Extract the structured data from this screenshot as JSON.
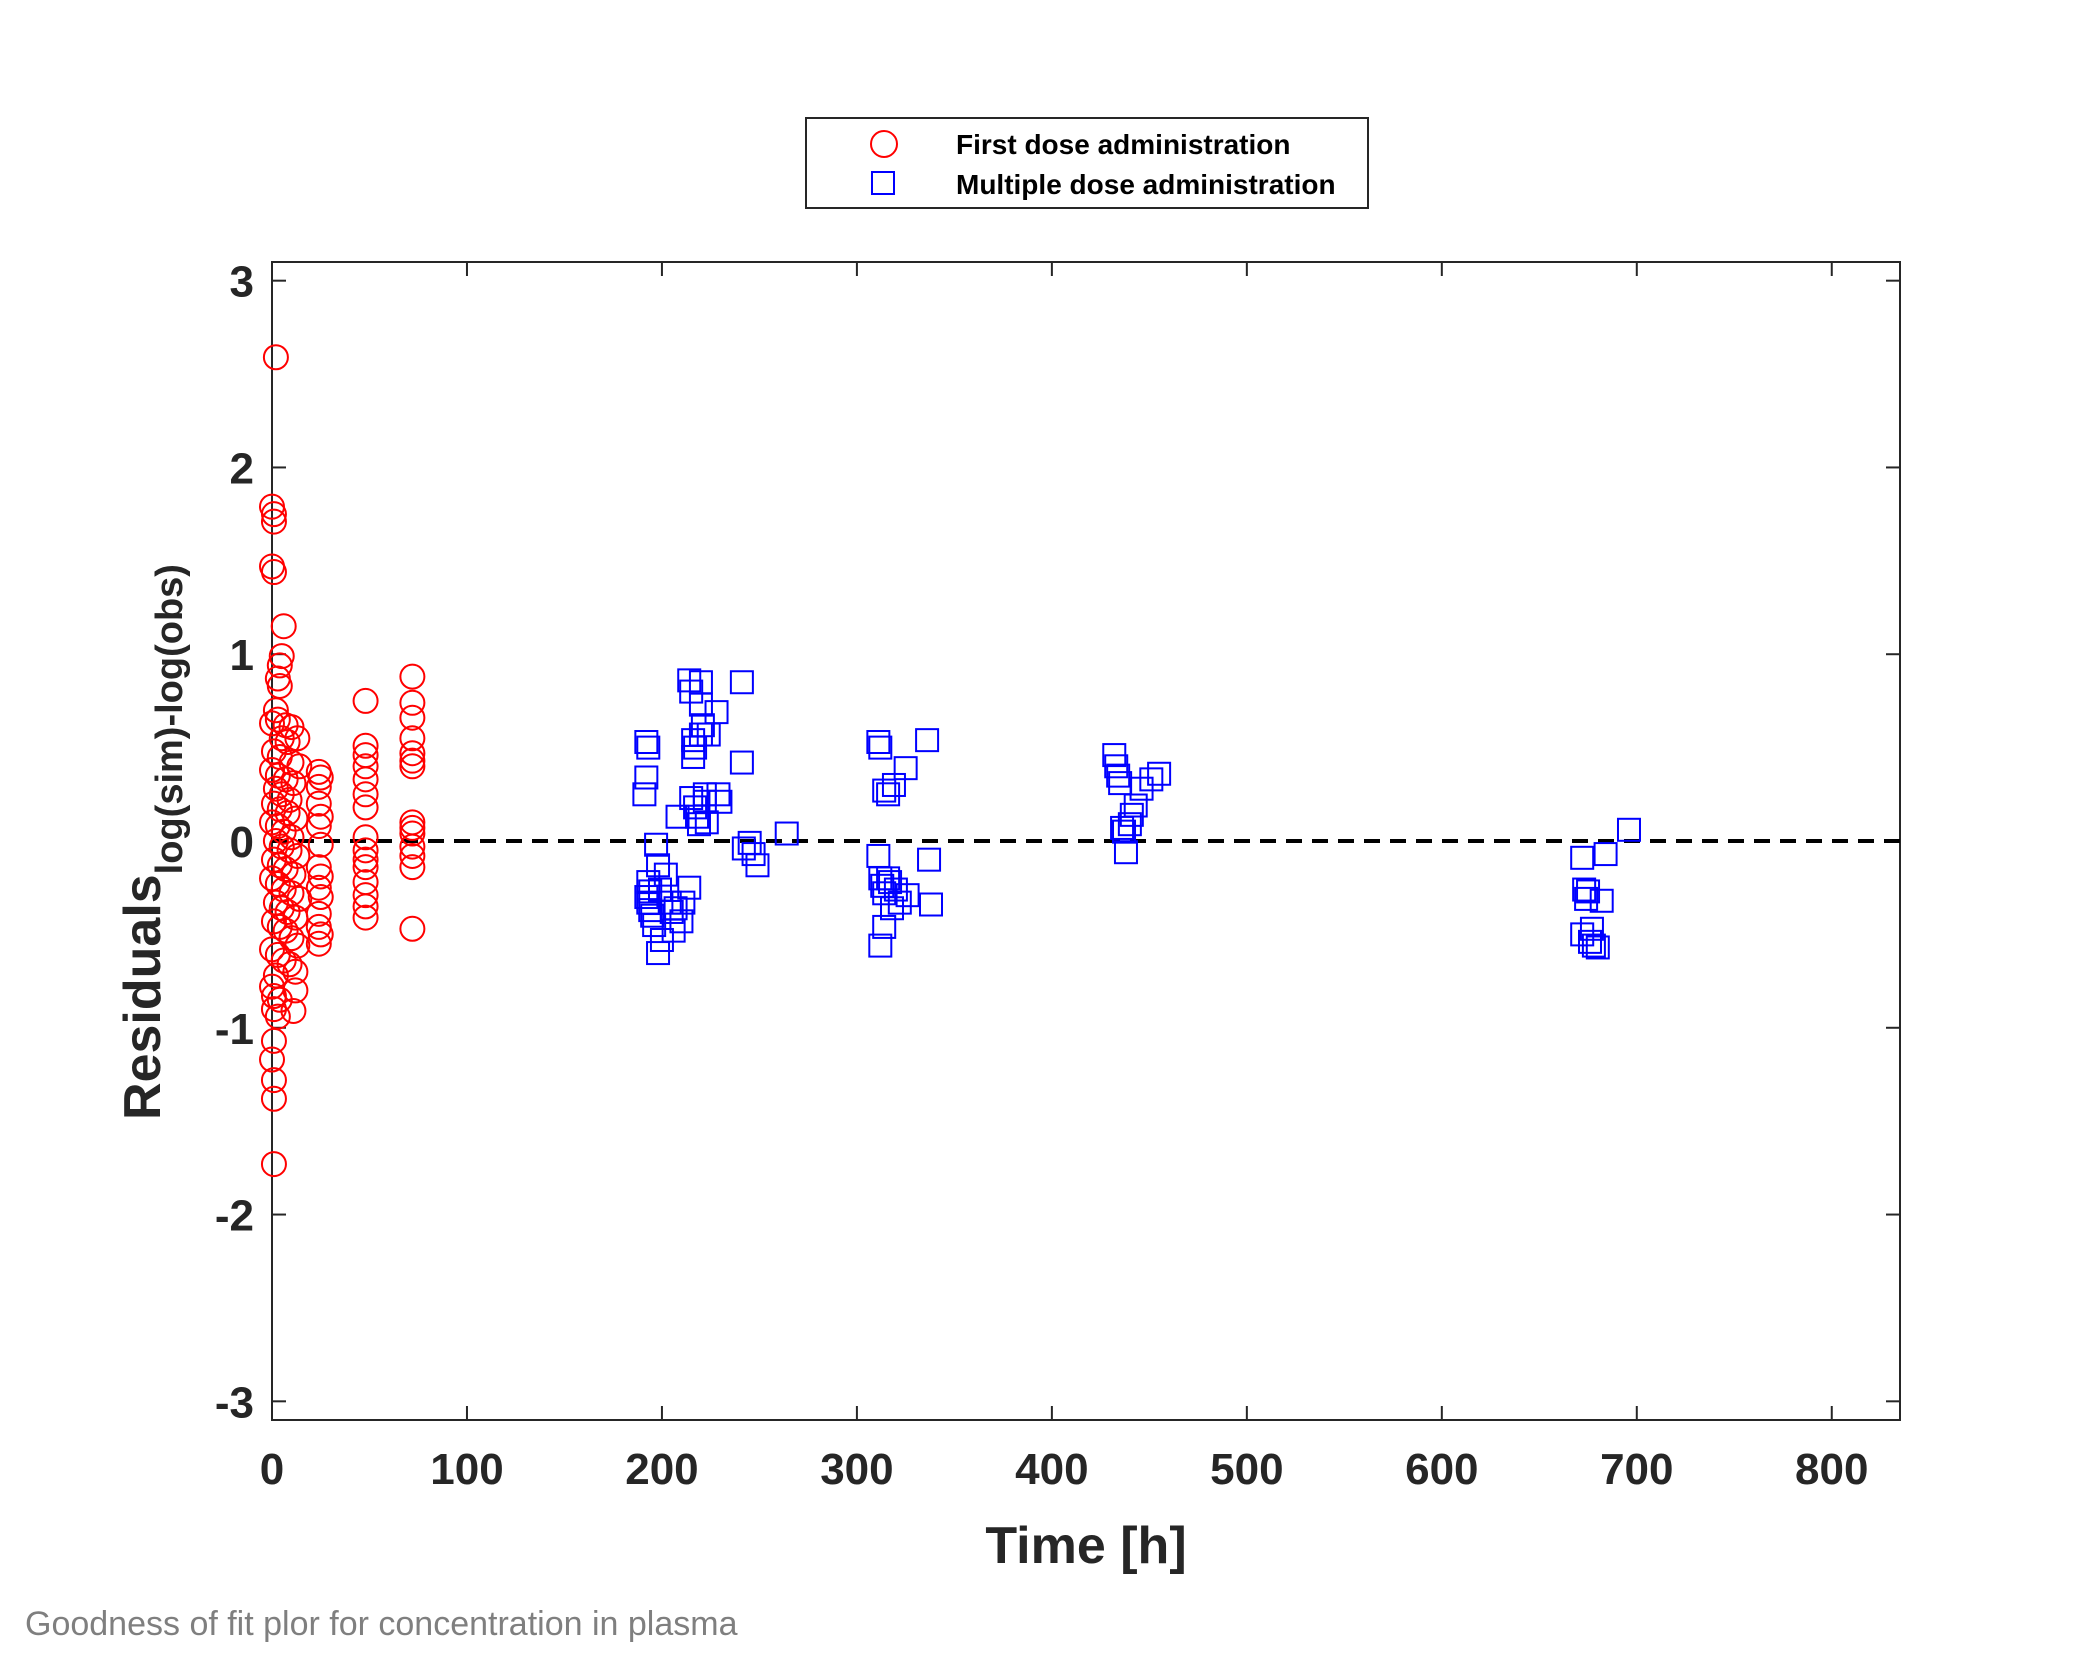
{
  "caption": "Goodness of fit plor for concentration in plasma",
  "chart_data": {
    "type": "scatter",
    "xlabel": "Time [h]",
    "ylabel_main": "Residuals",
    "ylabel_sub": "log(sim)-log(obs)",
    "xlim": [
      0,
      835
    ],
    "ylim": [
      -3.1,
      3.1
    ],
    "xticks": [
      0,
      100,
      200,
      300,
      400,
      500,
      600,
      700,
      800
    ],
    "yticks": [
      -3,
      -2,
      -1,
      0,
      1,
      2,
      3
    ],
    "grid": false,
    "legend_position": "top-center",
    "reference_line": {
      "y": 0,
      "style": "dashed",
      "color": "#000000"
    },
    "series": [
      {
        "name": "First dose administration",
        "marker": "circle",
        "color": "#ff0000",
        "points": [
          [
            2,
            2.59
          ],
          [
            0,
            1.79
          ],
          [
            1,
            1.75
          ],
          [
            1,
            1.71
          ],
          [
            0,
            1.47
          ],
          [
            1,
            1.44
          ],
          [
            6,
            1.15
          ],
          [
            5,
            0.99
          ],
          [
            4,
            0.94
          ],
          [
            3,
            0.87
          ],
          [
            4,
            0.83
          ],
          [
            2,
            0.7
          ],
          [
            0,
            0.63
          ],
          [
            3,
            0.65
          ],
          [
            7,
            0.62
          ],
          [
            10,
            0.61
          ],
          [
            13,
            0.55
          ],
          [
            5,
            0.55
          ],
          [
            8,
            0.53
          ],
          [
            1,
            0.48
          ],
          [
            4,
            0.45
          ],
          [
            10,
            0.42
          ],
          [
            14,
            0.4
          ],
          [
            0,
            0.38
          ],
          [
            3,
            0.35
          ],
          [
            7,
            0.33
          ],
          [
            11,
            0.31
          ],
          [
            2,
            0.28
          ],
          [
            5,
            0.25
          ],
          [
            9,
            0.22
          ],
          [
            1,
            0.2
          ],
          [
            4,
            0.17
          ],
          [
            8,
            0.15
          ],
          [
            12,
            0.12
          ],
          [
            0,
            0.1
          ],
          [
            3,
            0.08
          ],
          [
            6,
            0.05
          ],
          [
            10,
            0.02
          ],
          [
            2,
            0.0
          ],
          [
            5,
            -0.03
          ],
          [
            9,
            -0.05
          ],
          [
            13,
            -0.08
          ],
          [
            1,
            -0.1
          ],
          [
            4,
            -0.13
          ],
          [
            7,
            -0.15
          ],
          [
            11,
            -0.18
          ],
          [
            0,
            -0.2
          ],
          [
            3,
            -0.23
          ],
          [
            6,
            -0.26
          ],
          [
            10,
            -0.28
          ],
          [
            14,
            -0.31
          ],
          [
            2,
            -0.33
          ],
          [
            5,
            -0.36
          ],
          [
            8,
            -0.38
          ],
          [
            12,
            -0.41
          ],
          [
            1,
            -0.43
          ],
          [
            4,
            -0.46
          ],
          [
            7,
            -0.48
          ],
          [
            10,
            -0.52
          ],
          [
            13,
            -0.56
          ],
          [
            0,
            -0.58
          ],
          [
            3,
            -0.61
          ],
          [
            6,
            -0.64
          ],
          [
            9,
            -0.66
          ],
          [
            12,
            -0.7
          ],
          [
            2,
            -0.72
          ],
          [
            0,
            -0.78
          ],
          [
            1,
            -0.83
          ],
          [
            12,
            -0.8
          ],
          [
            4,
            -0.85
          ],
          [
            1,
            -0.9
          ],
          [
            11,
            -0.91
          ],
          [
            3,
            -0.94
          ],
          [
            1,
            -1.07
          ],
          [
            0,
            -1.17
          ],
          [
            1,
            -1.28
          ],
          [
            1,
            -1.38
          ],
          [
            1,
            -1.73
          ],
          [
            24,
            0.37
          ],
          [
            25,
            0.34
          ],
          [
            24,
            0.29
          ],
          [
            24,
            0.2
          ],
          [
            25,
            0.13
          ],
          [
            24,
            0.08
          ],
          [
            25,
            -0.02
          ],
          [
            24,
            -0.14
          ],
          [
            25,
            -0.19
          ],
          [
            24,
            -0.25
          ],
          [
            25,
            -0.3
          ],
          [
            24,
            -0.39
          ],
          [
            24,
            -0.46
          ],
          [
            25,
            -0.5
          ],
          [
            24,
            -0.55
          ],
          [
            48,
            0.75
          ],
          [
            48,
            0.51
          ],
          [
            48,
            0.46
          ],
          [
            48,
            0.4
          ],
          [
            48,
            0.33
          ],
          [
            48,
            0.25
          ],
          [
            48,
            0.18
          ],
          [
            48,
            0.02
          ],
          [
            48,
            -0.05
          ],
          [
            48,
            -0.1
          ],
          [
            48,
            -0.14
          ],
          [
            48,
            -0.22
          ],
          [
            48,
            -0.29
          ],
          [
            48,
            -0.35
          ],
          [
            48,
            -0.41
          ],
          [
            72,
            0.88
          ],
          [
            72,
            0.74
          ],
          [
            72,
            0.66
          ],
          [
            72,
            0.55
          ],
          [
            72,
            0.47
          ],
          [
            72,
            0.43
          ],
          [
            72,
            0.4
          ],
          [
            72,
            0.1
          ],
          [
            72,
            0.07
          ],
          [
            72,
            0.04
          ],
          [
            72,
            -0.03
          ],
          [
            72,
            -0.08
          ],
          [
            72,
            -0.14
          ],
          [
            72,
            -0.47
          ]
        ]
      },
      {
        "name": "Multiple dose administration",
        "marker": "square",
        "color": "#0000ff",
        "points": [
          [
            192,
            0.53
          ],
          [
            193,
            0.5
          ],
          [
            192,
            0.34
          ],
          [
            191,
            0.25
          ],
          [
            193,
            -0.22
          ],
          [
            194,
            -0.27
          ],
          [
            192,
            -0.3
          ],
          [
            193,
            -0.33
          ],
          [
            194,
            -0.37
          ],
          [
            195,
            -0.4
          ],
          [
            196,
            -0.45
          ],
          [
            197,
            -0.02
          ],
          [
            198,
            -0.13
          ],
          [
            199,
            -0.26
          ],
          [
            200,
            -0.53
          ],
          [
            198,
            -0.6
          ],
          [
            202,
            -0.18
          ],
          [
            204,
            -0.33
          ],
          [
            205,
            -0.38
          ],
          [
            206,
            -0.48
          ],
          [
            207,
            -0.36
          ],
          [
            208,
            0.13
          ],
          [
            210,
            -0.43
          ],
          [
            211,
            -0.33
          ],
          [
            214,
            -0.25
          ],
          [
            214,
            0.86
          ],
          [
            215,
            0.8
          ],
          [
            216,
            0.54
          ],
          [
            217,
            0.5
          ],
          [
            216,
            0.45
          ],
          [
            215,
            0.23
          ],
          [
            217,
            0.18
          ],
          [
            218,
            0.13
          ],
          [
            219,
            0.09
          ],
          [
            220,
            0.57
          ],
          [
            220,
            0.73
          ],
          [
            221,
            0.62
          ],
          [
            222,
            0.25
          ],
          [
            222,
            0.21
          ],
          [
            223,
            0.1
          ],
          [
            224,
            0.57
          ],
          [
            228,
            0.69
          ],
          [
            229,
            0.25
          ],
          [
            230,
            0.21
          ],
          [
            220,
            0.85
          ],
          [
            241,
            0.85
          ],
          [
            241,
            0.42
          ],
          [
            242,
            -0.04
          ],
          [
            245,
            -0.01
          ],
          [
            247,
            -0.07
          ],
          [
            249,
            -0.13
          ],
          [
            264,
            0.04
          ],
          [
            311,
            0.53
          ],
          [
            312,
            0.5
          ],
          [
            311,
            -0.08
          ],
          [
            312,
            -0.2
          ],
          [
            313,
            -0.24
          ],
          [
            314,
            -0.28
          ],
          [
            314,
            0.27
          ],
          [
            316,
            0.25
          ],
          [
            316,
            -0.2
          ],
          [
            317,
            -0.22
          ],
          [
            318,
            -0.36
          ],
          [
            319,
            0.3
          ],
          [
            320,
            -0.26
          ],
          [
            322,
            -0.33
          ],
          [
            325,
            0.39
          ],
          [
            326,
            -0.29
          ],
          [
            336,
            0.54
          ],
          [
            337,
            -0.1
          ],
          [
            338,
            -0.34
          ],
          [
            312,
            -0.56
          ],
          [
            314,
            -0.46
          ],
          [
            432,
            0.46
          ],
          [
            433,
            0.4
          ],
          [
            434,
            0.35
          ],
          [
            435,
            0.31
          ],
          [
            436,
            0.07
          ],
          [
            437,
            0.05
          ],
          [
            438,
            -0.06
          ],
          [
            440,
            0.09
          ],
          [
            441,
            0.14
          ],
          [
            443,
            0.19
          ],
          [
            446,
            0.28
          ],
          [
            451,
            0.33
          ],
          [
            455,
            0.36
          ],
          [
            672,
            -0.09
          ],
          [
            673,
            -0.26
          ],
          [
            674,
            -0.31
          ],
          [
            675,
            -0.27
          ],
          [
            672,
            -0.5
          ],
          [
            676,
            -0.54
          ],
          [
            677,
            -0.47
          ],
          [
            678,
            -0.56
          ],
          [
            680,
            -0.57
          ],
          [
            682,
            -0.32
          ],
          [
            684,
            -0.07
          ],
          [
            696,
            0.06
          ]
        ]
      }
    ]
  }
}
